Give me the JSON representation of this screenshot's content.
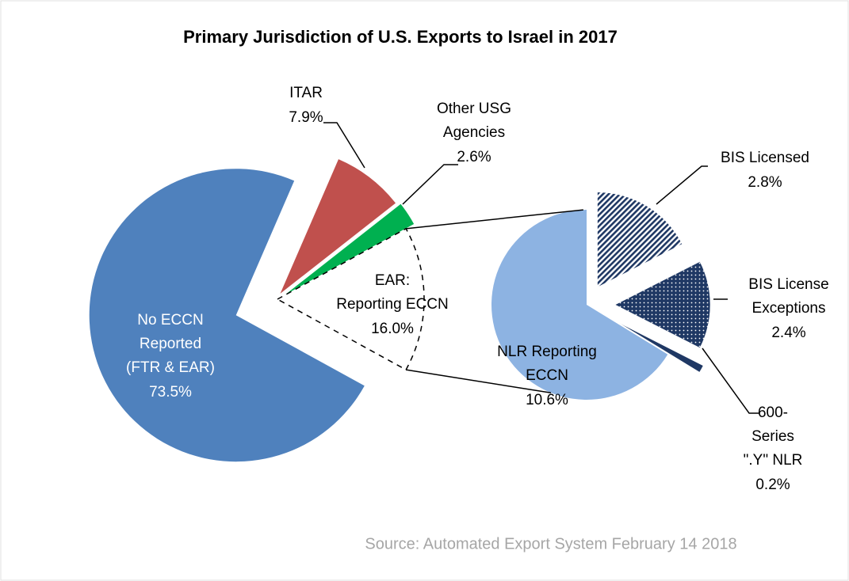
{
  "chart_data": [
    {
      "type": "pie",
      "title": "Primary Jurisdiction of U.S. Exports to Israel in 2017",
      "categories": [
        [
          "No ECCN",
          "Reported",
          "(FTR & EAR)"
        ],
        [
          "ITAR"
        ],
        [
          "Other USG",
          "Agencies"
        ],
        [
          "EAR:",
          "Reporting ECCN"
        ]
      ],
      "values": [
        73.5,
        7.9,
        2.6,
        16.0
      ],
      "value_labels": [
        "73.5%",
        "7.9%",
        "2.6%",
        "16.0%"
      ],
      "colors": [
        "#4f81bd",
        "#c0504d",
        "#00b050",
        null
      ]
    },
    {
      "type": "pie",
      "categories": [
        [
          "NLR Reporting",
          "ECCN"
        ],
        [
          "BIS Licensed"
        ],
        [
          "BIS License",
          "Exceptions"
        ],
        [
          "600-",
          "Series",
          "\".Y\" NLR"
        ]
      ],
      "values": [
        10.6,
        2.8,
        2.4,
        0.2
      ],
      "value_labels": [
        "10.6%",
        "2.8%",
        "2.4%",
        "0.2%"
      ],
      "colors": [
        "#8db3e2",
        "#1f3864",
        "#1f3864",
        "#1f3864"
      ]
    }
  ],
  "source": "Source: Automated Export System February 14 2018"
}
